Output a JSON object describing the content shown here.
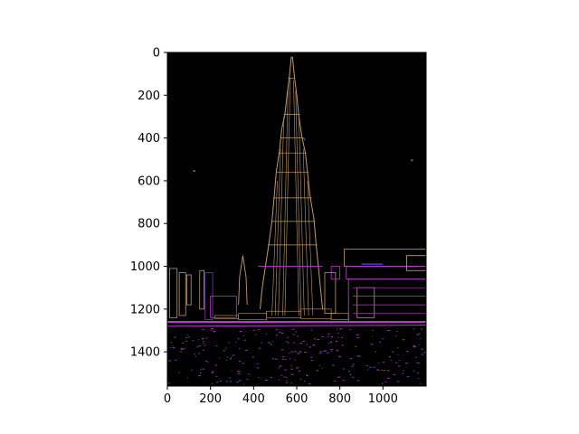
{
  "chart_data": {
    "type": "image",
    "title": "",
    "xlabel": "",
    "ylabel": "",
    "xlim": [
      0,
      1200
    ],
    "ylim": [
      1560,
      0
    ],
    "y_inverted": true,
    "x_ticks": [
      0,
      200,
      400,
      600,
      800,
      1000
    ],
    "y_ticks": [
      0,
      200,
      400,
      600,
      800,
      1000,
      1200,
      1400
    ],
    "grid": false,
    "legend": "none",
    "image_content": "edge-detected-skyline",
    "colors": {
      "background": "#000000",
      "edge_tan": "#c09a68",
      "edge_magenta": "#b43cc8",
      "edge_purple": "#7a3aa8",
      "edge_blue": "#3c3cc8",
      "edge_green": "#5a8a4a"
    }
  }
}
